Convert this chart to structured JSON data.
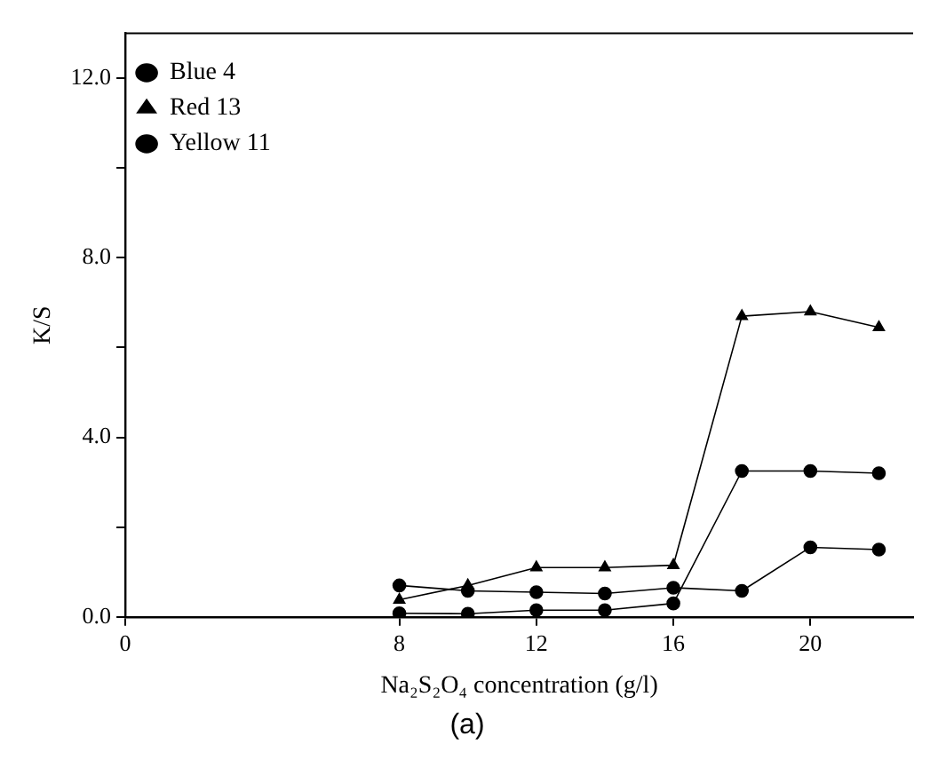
{
  "chart_data": {
    "type": "line",
    "xlabel": "Na₂S₂O₄ concentration (g/l)",
    "ylabel": "K/S",
    "annotations": [
      "(a)"
    ],
    "x": [
      8,
      10,
      12,
      14,
      16,
      18,
      20,
      22
    ],
    "series": [
      {
        "name": "Blue 4",
        "color": "#000000",
        "marker": "circle",
        "values": [
          0.08,
          0.07,
          0.15,
          0.15,
          0.3,
          3.25,
          3.25,
          3.2
        ]
      },
      {
        "name": "Red 13",
        "color": "#000000",
        "marker": "triangle",
        "values": [
          0.38,
          0.7,
          1.1,
          1.1,
          1.15,
          6.7,
          6.8,
          6.45
        ]
      },
      {
        "name": "Yellow 11",
        "color": "#000000",
        "marker": "circle",
        "values": [
          0.7,
          0.58,
          0.55,
          0.52,
          0.65,
          0.58,
          1.55,
          1.5
        ]
      }
    ],
    "xlim": [
      0,
      23
    ],
    "xticks": [
      0,
      8,
      12,
      16,
      20
    ],
    "ylim": [
      0,
      13
    ],
    "yticks": [
      {
        "value": 0,
        "label": "0.0"
      },
      {
        "value": 2,
        "label": null
      },
      {
        "value": 4,
        "label": "4.0"
      },
      {
        "value": 6,
        "label": null
      },
      {
        "value": 8,
        "label": "8.0"
      },
      {
        "value": 10,
        "label": null
      },
      {
        "value": 12,
        "label": "12.0"
      }
    ],
    "grid": false,
    "legend": "top left",
    "line_style": "solid"
  }
}
